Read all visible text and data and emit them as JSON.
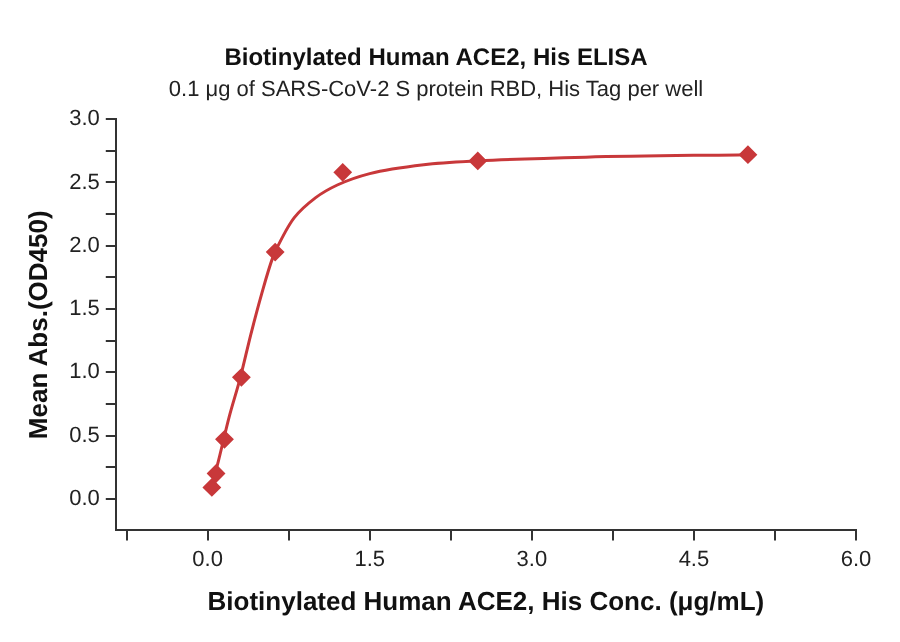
{
  "chart_data": {
    "type": "scatter",
    "title": "Biotinylated Human ACE2, His ELISA",
    "subtitle": "0.1 μg of SARS-CoV-2 S protein RBD, His Tag per well",
    "xlabel": "Biotinylated Human ACE2, His Conc. (μg/mL)",
    "ylabel": "Mean Abs.(OD450)",
    "xlim": [
      -0.85,
      6.0
    ],
    "xticks": [
      {
        "value": -0.75,
        "label": null
      },
      {
        "value": 0,
        "label": "0.0"
      },
      {
        "value": 0.75,
        "label": null
      },
      {
        "value": 1.5,
        "label": "1.5"
      },
      {
        "value": 2.25,
        "label": null
      },
      {
        "value": 3,
        "label": "3.0"
      },
      {
        "value": 3.75,
        "label": null
      },
      {
        "value": 4.5,
        "label": "4.5"
      },
      {
        "value": 5.25,
        "label": null
      },
      {
        "value": 6,
        "label": "6.0"
      }
    ],
    "ylim": [
      -0.25,
      3.0
    ],
    "yticks": [
      {
        "value": 0,
        "label": "0.0"
      },
      {
        "value": 0.25,
        "label": null
      },
      {
        "value": 0.5,
        "label": "0.5"
      },
      {
        "value": 0.75,
        "label": null
      },
      {
        "value": 1,
        "label": "1.0"
      },
      {
        "value": 1.25,
        "label": null
      },
      {
        "value": 1.5,
        "label": "1.5"
      },
      {
        "value": 1.75,
        "label": null
      },
      {
        "value": 2,
        "label": "2.0"
      },
      {
        "value": 2.25,
        "label": null
      },
      {
        "value": 2.5,
        "label": "2.5"
      },
      {
        "value": 2.75,
        "label": null
      },
      {
        "value": 3,
        "label": "3.0"
      }
    ],
    "grid": false,
    "legend": false,
    "series": [
      {
        "color": "#c8383a",
        "marker": "diamond",
        "x": [
          0.039,
          0.078,
          0.156,
          0.3125,
          0.625,
          1.25,
          2.5,
          5.0
        ],
        "values": [
          0.09,
          0.2,
          0.47,
          0.96,
          1.95,
          2.58,
          2.67,
          2.72
        ]
      },
      {
        "type": "line",
        "color": "#c8383a",
        "marker": "none",
        "x": [
          0.03,
          0.1,
          0.2,
          0.3,
          0.4,
          0.5,
          0.6,
          0.7,
          0.8,
          1.0,
          1.2,
          1.5,
          2.0,
          2.5,
          3.5,
          5.0
        ],
        "values": [
          0.07,
          0.3,
          0.65,
          0.95,
          1.3,
          1.62,
          1.9,
          2.08,
          2.22,
          2.38,
          2.48,
          2.57,
          2.64,
          2.67,
          2.7,
          2.72
        ]
      }
    ]
  }
}
